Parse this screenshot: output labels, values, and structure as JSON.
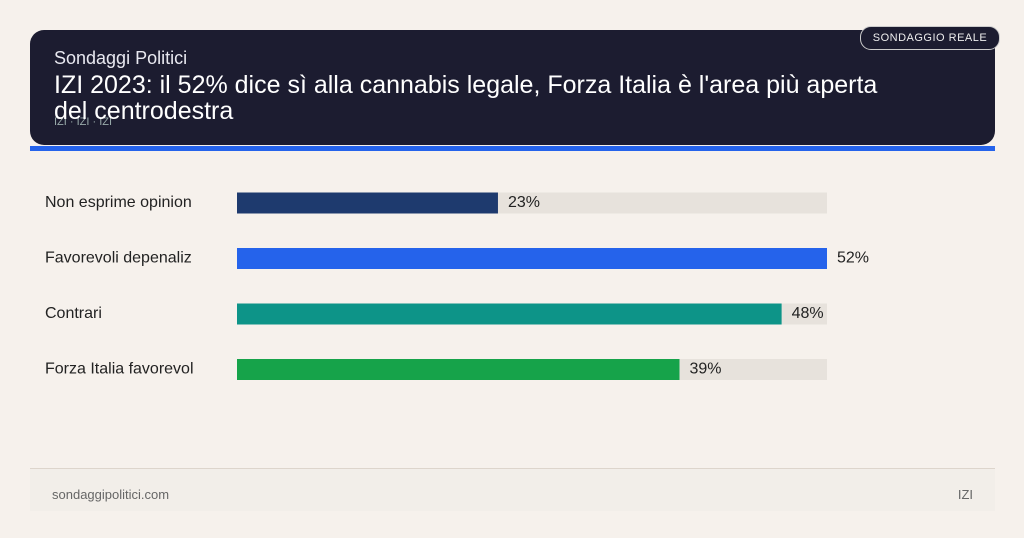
{
  "brand": "Sondaggi Politici",
  "badge": "SONDAGGIO REALE",
  "sources": "IZI · IZI · IZI",
  "footer": {
    "site": "sondaggipolitici.com",
    "source": "IZI"
  },
  "chart_data": {
    "type": "hbar",
    "title": "IZI 2023: il 52% dice sì alla cannabis legale, Forza Italia è l'area più aperta del centrodestra",
    "categories": [
      "Non esprime opinion",
      "Favorevoli depenaliz",
      "Contrari",
      "Forza Italia favorevol"
    ],
    "values": [
      23,
      52,
      48,
      39
    ],
    "value_labels": [
      "23%",
      "52%",
      "48%",
      "39%"
    ],
    "colors": [
      "#1e3a6e",
      "#2563eb",
      "#0d9488",
      "#16a34a"
    ],
    "track_color": "#e7e2dc"
  }
}
